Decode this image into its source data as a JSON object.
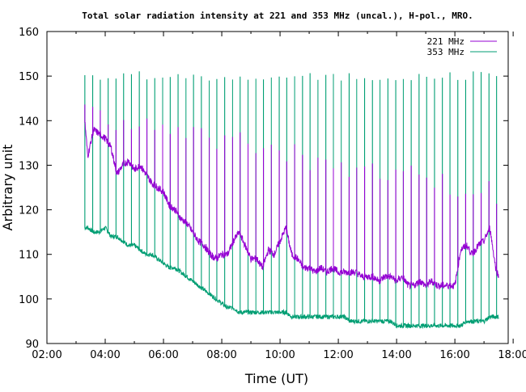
{
  "chart_data": {
    "type": "line",
    "title": "Total solar radiation intensity at 221 and 353 MHz (uncal.), H-pol., MRO.",
    "xlabel": "Time (UT)",
    "ylabel": "Arbitrary unit",
    "x_range_hours": [
      2,
      17.83
    ],
    "ylim": [
      90,
      160
    ],
    "x_ticks": [
      "02:00",
      "04:00",
      "06:00",
      "08:00",
      "10:00",
      "12:00",
      "14:00",
      "16:00",
      "18:00"
    ],
    "y_ticks": [
      "90",
      "100",
      "110",
      "120",
      "130",
      "140",
      "150",
      "160"
    ],
    "grid": false,
    "legend_position": "top-right",
    "series": [
      {
        "name": "221 MHz",
        "color": "#9400d3",
        "x": [
          3.3,
          3.4,
          3.6,
          3.8,
          4.0,
          4.2,
          4.4,
          4.6,
          4.8,
          5.0,
          5.2,
          5.4,
          5.6,
          5.8,
          6.0,
          6.2,
          6.4,
          6.6,
          6.8,
          7.0,
          7.2,
          7.4,
          7.6,
          7.8,
          8.0,
          8.2,
          8.4,
          8.6,
          8.8,
          9.0,
          9.2,
          9.4,
          9.6,
          9.8,
          10.0,
          10.2,
          10.4,
          10.6,
          10.8,
          11.0,
          11.2,
          11.4,
          11.6,
          11.8,
          12.0,
          12.2,
          12.4,
          12.6,
          12.8,
          13.0,
          13.2,
          13.4,
          13.6,
          13.8,
          14.0,
          14.2,
          14.4,
          14.6,
          14.8,
          15.0,
          15.2,
          15.4,
          15.6,
          15.8,
          16.0,
          16.2,
          16.4,
          16.6,
          16.8,
          17.0,
          17.2,
          17.4,
          17.5
        ],
        "y": [
          140,
          132,
          138,
          137,
          136,
          134,
          128,
          130,
          131,
          129,
          130,
          128,
          126,
          125,
          124,
          121,
          120,
          118,
          117,
          115,
          113,
          112,
          110,
          109,
          110,
          110,
          113,
          115,
          112,
          109,
          109,
          107,
          111,
          110,
          113,
          116,
          110,
          109,
          107,
          107,
          106,
          107,
          106,
          107,
          106,
          106,
          106,
          106,
          105,
          105,
          105,
          104,
          105,
          105,
          104,
          105,
          103,
          103,
          104,
          103,
          104,
          103,
          103,
          103,
          103,
          111,
          112,
          110,
          112,
          113,
          116,
          107,
          105
        ]
      },
      {
        "name": "353 MHz",
        "color": "#009e73",
        "x": [
          3.3,
          3.4,
          3.6,
          3.8,
          4.0,
          4.2,
          4.4,
          4.6,
          4.8,
          5.0,
          5.2,
          5.4,
          5.6,
          5.8,
          6.0,
          6.2,
          6.4,
          6.6,
          6.8,
          7.0,
          7.2,
          7.4,
          7.6,
          7.8,
          8.0,
          8.2,
          8.4,
          8.6,
          8.8,
          9.0,
          9.2,
          9.4,
          9.6,
          9.8,
          10.0,
          10.2,
          10.4,
          10.6,
          10.8,
          11.0,
          11.2,
          11.4,
          11.6,
          11.8,
          12.0,
          12.2,
          12.4,
          12.6,
          12.8,
          13.0,
          13.2,
          13.4,
          13.6,
          13.8,
          14.0,
          14.2,
          14.4,
          14.6,
          14.8,
          15.0,
          15.2,
          15.4,
          15.6,
          15.8,
          16.0,
          16.2,
          16.4,
          16.6,
          16.8,
          17.0,
          17.2,
          17.4,
          17.5
        ],
        "y": [
          116,
          116,
          115,
          115,
          116,
          114,
          114,
          113,
          112,
          112,
          111,
          110,
          110,
          109,
          108,
          107,
          107,
          106,
          105,
          104,
          103,
          102,
          101,
          100,
          99,
          98,
          98,
          97,
          97,
          97,
          97,
          97,
          97,
          97,
          97,
          97,
          96,
          96,
          96,
          96,
          96,
          96,
          96,
          96,
          96,
          96,
          95,
          95,
          95,
          95,
          95,
          95,
          95,
          95,
          94,
          94,
          94,
          94,
          94,
          94,
          94,
          94,
          94,
          94,
          94,
          94,
          95,
          95,
          95,
          95,
          96,
          96,
          96
        ]
      }
    ],
    "calibration_pulses": {
      "times_hours": [
        3.3,
        3.57,
        3.83,
        4.1,
        4.37,
        4.63,
        4.9,
        5.17,
        5.43,
        5.7,
        5.97,
        6.23,
        6.5,
        6.77,
        7.03,
        7.3,
        7.57,
        7.83,
        8.1,
        8.37,
        8.63,
        8.9,
        9.17,
        9.43,
        9.7,
        9.97,
        10.23,
        10.5,
        10.77,
        11.03,
        11.3,
        11.57,
        11.83,
        12.1,
        12.37,
        12.63,
        12.9,
        13.17,
        13.43,
        13.7,
        13.97,
        14.23,
        14.5,
        14.77,
        15.03,
        15.3,
        15.57,
        15.83,
        16.1,
        16.37,
        16.63,
        16.9,
        17.17,
        17.43
      ],
      "peak_353": 150,
      "peak_221_start": 141,
      "peak_221_end": 124
    }
  }
}
